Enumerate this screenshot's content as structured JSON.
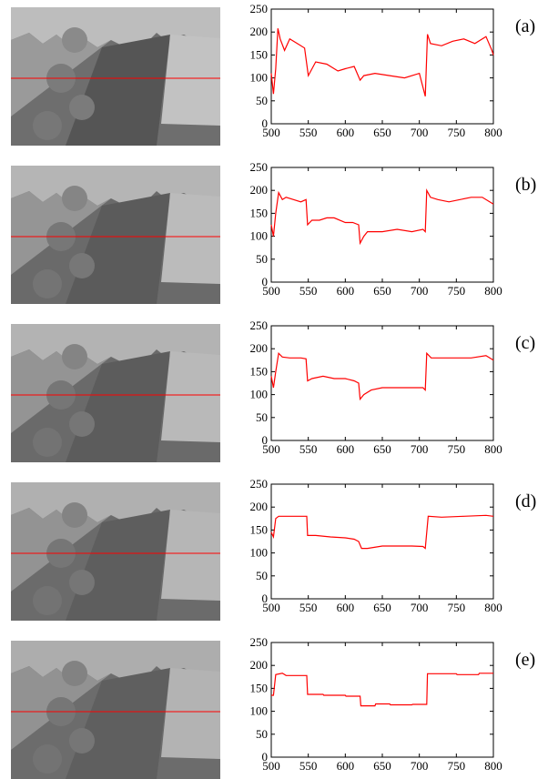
{
  "panels": [
    {
      "label": "(a)"
    },
    {
      "label": "(b)"
    },
    {
      "label": "(c)"
    },
    {
      "label": "(d)"
    },
    {
      "label": "(e)"
    }
  ],
  "chart_data": [
    {
      "type": "line",
      "title": "",
      "xlabel": "",
      "ylabel": "",
      "xlim": [
        500,
        800
      ],
      "ylim": [
        0,
        250
      ],
      "xticks": [
        500,
        550,
        600,
        650,
        700,
        750,
        800
      ],
      "yticks": [
        0,
        50,
        100,
        150,
        200,
        250
      ],
      "line_color": "#ff0000",
      "series": [
        {
          "x": [
            500,
            503,
            506,
            509,
            512,
            518,
            525,
            535,
            545,
            550,
            560,
            575,
            590,
            600,
            612,
            620,
            625,
            640,
            660,
            680,
            700,
            708,
            711,
            715,
            730,
            745,
            760,
            775,
            790,
            798,
            800
          ],
          "y": [
            110,
            65,
            120,
            208,
            185,
            160,
            185,
            175,
            165,
            105,
            135,
            130,
            115,
            120,
            125,
            95,
            105,
            110,
            105,
            100,
            110,
            60,
            195,
            175,
            170,
            180,
            185,
            175,
            190,
            160,
            150
          ]
        }
      ]
    },
    {
      "type": "line",
      "title": "",
      "xlabel": "",
      "ylabel": "",
      "xlim": [
        500,
        800
      ],
      "ylim": [
        0,
        250
      ],
      "xticks": [
        500,
        550,
        600,
        650,
        700,
        750,
        800
      ],
      "yticks": [
        0,
        50,
        100,
        150,
        200,
        250
      ],
      "line_color": "#ff0000",
      "series": [
        {
          "x": [
            500,
            503,
            506,
            510,
            515,
            520,
            530,
            540,
            547,
            549,
            555,
            565,
            575,
            585,
            600,
            610,
            618,
            620,
            625,
            630,
            650,
            670,
            690,
            705,
            708,
            710,
            715,
            725,
            740,
            755,
            770,
            785,
            795,
            800
          ],
          "y": [
            125,
            100,
            150,
            195,
            180,
            185,
            180,
            175,
            180,
            125,
            135,
            135,
            140,
            140,
            130,
            130,
            125,
            85,
            100,
            110,
            110,
            115,
            110,
            115,
            110,
            200,
            185,
            180,
            175,
            180,
            185,
            185,
            175,
            170
          ]
        }
      ]
    },
    {
      "type": "line",
      "title": "",
      "xlabel": "",
      "ylabel": "",
      "xlim": [
        500,
        800
      ],
      "ylim": [
        0,
        250
      ],
      "xticks": [
        500,
        550,
        600,
        650,
        700,
        750,
        800
      ],
      "yticks": [
        0,
        50,
        100,
        150,
        200,
        250
      ],
      "line_color": "#ff0000",
      "series": [
        {
          "x": [
            500,
            503,
            506,
            510,
            515,
            525,
            540,
            547,
            549,
            555,
            570,
            585,
            600,
            612,
            618,
            620,
            625,
            635,
            650,
            670,
            690,
            705,
            708,
            710,
            716,
            730,
            750,
            770,
            790,
            800
          ],
          "y": [
            140,
            115,
            150,
            190,
            182,
            180,
            180,
            178,
            130,
            135,
            140,
            135,
            135,
            130,
            125,
            90,
            100,
            110,
            115,
            115,
            115,
            115,
            110,
            190,
            180,
            180,
            180,
            180,
            185,
            175
          ]
        }
      ]
    },
    {
      "type": "line",
      "title": "",
      "xlabel": "",
      "ylabel": "",
      "xlim": [
        500,
        800
      ],
      "ylim": [
        0,
        250
      ],
      "xticks": [
        500,
        550,
        600,
        650,
        700,
        750,
        800
      ],
      "yticks": [
        0,
        50,
        100,
        150,
        200,
        250
      ],
      "line_color": "#ff0000",
      "series": [
        {
          "x": [
            500,
            503,
            506,
            510,
            548,
            549,
            560,
            580,
            600,
            612,
            618,
            622,
            630,
            650,
            670,
            690,
            705,
            708,
            712,
            730,
            760,
            790,
            800
          ],
          "y": [
            145,
            135,
            175,
            180,
            180,
            138,
            138,
            135,
            133,
            130,
            125,
            110,
            110,
            115,
            115,
            115,
            114,
            110,
            180,
            178,
            180,
            182,
            180
          ]
        }
      ]
    },
    {
      "type": "line",
      "title": "",
      "xlabel": "",
      "ylabel": "",
      "xlim": [
        500,
        800
      ],
      "ylim": [
        0,
        250
      ],
      "xticks": [
        500,
        550,
        600,
        650,
        700,
        750,
        800
      ],
      "yticks": [
        0,
        50,
        100,
        150,
        200,
        250
      ],
      "line_color": "#ff0000",
      "series": [
        {
          "x": [
            500,
            503,
            506,
            515,
            520,
            548,
            549,
            570,
            571,
            600,
            601,
            620,
            621,
            640,
            641,
            660,
            661,
            690,
            691,
            710,
            711,
            750,
            751,
            780,
            781,
            800
          ],
          "y": [
            135,
            135,
            180,
            183,
            178,
            178,
            137,
            137,
            135,
            135,
            133,
            133,
            112,
            112,
            116,
            116,
            114,
            114,
            115,
            115,
            182,
            182,
            180,
            180,
            183,
            183
          ]
        }
      ]
    }
  ]
}
